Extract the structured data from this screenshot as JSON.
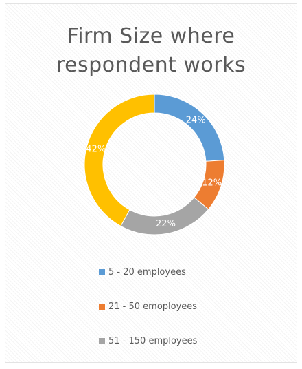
{
  "chart_data": {
    "type": "pie",
    "variant": "doughnut",
    "title": "Firm Size where respondent works",
    "title_lines": [
      "Firm Size where",
      "respondent works"
    ],
    "categories": [
      "5 - 20 employees",
      "21 - 50 emoployees",
      "51 - 150 employees",
      ""
    ],
    "values": [
      24,
      12,
      22,
      42
    ],
    "data_labels": [
      "24%",
      "12%",
      "22%",
      "42%"
    ],
    "colors": [
      "#5b9bd5",
      "#ed7d31",
      "#a5a5a5",
      "#ffc000"
    ],
    "legend_entries": [
      {
        "label": "5 - 20 employees",
        "color": "#5b9bd5"
      },
      {
        "label": "21 - 50 emoployees",
        "color": "#ed7d31"
      },
      {
        "label": "51 - 150 employees",
        "color": "#a5a5a5"
      }
    ],
    "legend_position": "bottom"
  }
}
